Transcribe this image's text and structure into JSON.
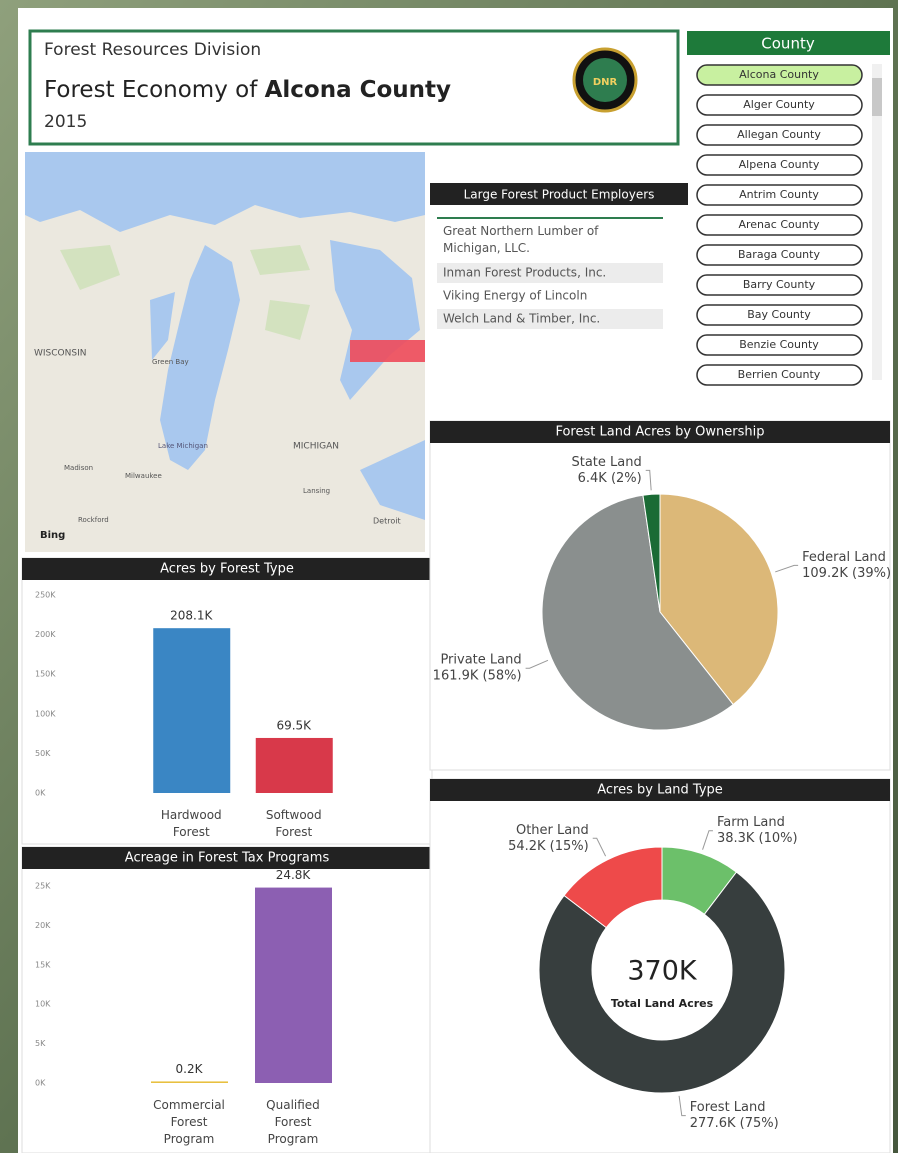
{
  "header": {
    "division": "Forest Resources Division",
    "title_prefix": "Forest Economy of",
    "county": "Alcona County",
    "year": "2015",
    "logo": "DNR"
  },
  "map": {
    "labels": [
      "WISCONSIN",
      "Green Bay",
      "Lake Michigan",
      "MICHIGAN",
      "Madison",
      "Milwaukee",
      "Rockford",
      "Lansing",
      "Detroit"
    ],
    "attribution": "Bing"
  },
  "employers": {
    "title": "Large Forest Product Employers",
    "rows": [
      "Great Northern Lumber of Michigan, LLC.",
      "Inman Forest Products, Inc.",
      "Viking Energy of Lincoln",
      "Welch Land & Timber, Inc."
    ]
  },
  "slicer": {
    "title": "County",
    "items": [
      "Alcona County",
      "Alger County",
      "Allegan County",
      "Alpena County",
      "Antrim County",
      "Arenac County",
      "Baraga County",
      "Barry County",
      "Bay County",
      "Benzie County",
      "Berrien County"
    ],
    "selected": 0
  },
  "chart_data": [
    {
      "type": "bar",
      "title": "Acres by Forest Type",
      "categories": [
        "Hardwood Forest",
        "Softwood Forest"
      ],
      "values": [
        208100,
        69500
      ],
      "value_labels": [
        "208.1K",
        "69.5K"
      ],
      "colors": [
        "#3a86c4",
        "#d8394a"
      ],
      "ylim": [
        0,
        250000
      ],
      "yticks": [
        {
          "value": 0,
          "label": "0K"
        },
        {
          "value": 50000,
          "label": "50K"
        },
        {
          "value": 100000,
          "label": "100K"
        },
        {
          "value": 150000,
          "label": "150K"
        },
        {
          "value": 200000,
          "label": "200K"
        },
        {
          "value": 250000,
          "label": "250K"
        }
      ],
      "grid": false
    },
    {
      "type": "bar",
      "title": "Acreage in Forest Tax Programs",
      "categories": [
        "Commercial Forest Program",
        "Qualified Forest Program"
      ],
      "values": [
        200,
        24800
      ],
      "value_labels": [
        "0.2K",
        "24.8K"
      ],
      "colors": [
        "#e8c040",
        "#8c5fb2"
      ],
      "ylim": [
        0,
        25000
      ],
      "yticks": [
        {
          "value": 0,
          "label": "0K"
        },
        {
          "value": 5000,
          "label": "5K"
        },
        {
          "value": 10000,
          "label": "10K"
        },
        {
          "value": 15000,
          "label": "15K"
        },
        {
          "value": 20000,
          "label": "20K"
        },
        {
          "value": 25000,
          "label": "25K"
        }
      ],
      "grid": false
    },
    {
      "type": "pie",
      "title": "Forest Land Acres by Ownership",
      "categories": [
        "Federal Land",
        "Private Land",
        "State Land"
      ],
      "values": [
        109200,
        161900,
        6400
      ],
      "value_labels": [
        "109.2K (39%)",
        "161.9K (58%)",
        "6.4K (2%)"
      ],
      "colors": [
        "#dcb878",
        "#8a8f8e",
        "#1a6b35"
      ]
    },
    {
      "type": "donut",
      "title": "Acres by Land Type",
      "categories": [
        "Farm Land",
        "Forest Land",
        "Other Land"
      ],
      "values": [
        38300,
        277600,
        54200
      ],
      "value_labels": [
        "38.3K (10%)",
        "277.6K (75%)",
        "54.2K (15%)"
      ],
      "colors": [
        "#6cc06a",
        "#373e3e",
        "#ee4a4a"
      ],
      "total": {
        "value": 370000,
        "label": "370K"
      },
      "total_caption": "Total Land Acres"
    }
  ]
}
